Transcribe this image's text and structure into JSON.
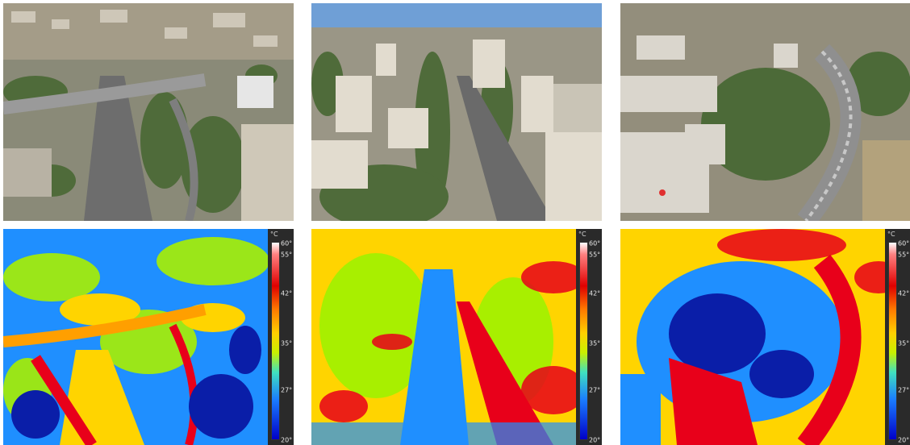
{
  "photos": [
    {
      "id": "photo-1",
      "name": "aerial-photo-interchange"
    },
    {
      "id": "photo-2",
      "name": "aerial-photo-avenue"
    },
    {
      "id": "photo-3",
      "name": "aerial-photo-viaduct"
    }
  ],
  "thermal": [
    {
      "id": "thermal-1"
    },
    {
      "id": "thermal-2"
    },
    {
      "id": "thermal-3"
    }
  ],
  "scale": {
    "unit": "°C",
    "ticks": [
      "60°",
      "55°",
      "42°",
      "35°",
      "27°",
      "20°"
    ]
  },
  "colors": {
    "hot": "#e8001a",
    "warm": "#ffd400",
    "mid": "#a8ef00",
    "cool": "#1f8fff",
    "cold": "#0a1ea8"
  }
}
